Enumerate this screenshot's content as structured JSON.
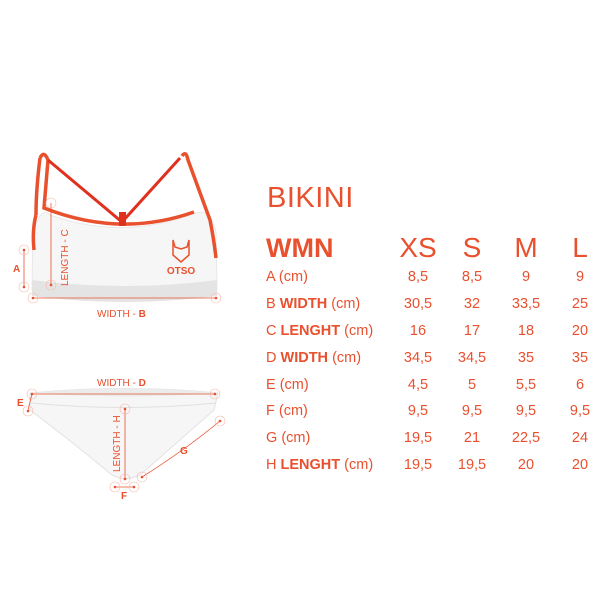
{
  "title": "BIKINI",
  "table": {
    "header": "WMN",
    "sizes": [
      "XS",
      "S",
      "M",
      "L"
    ],
    "rows": [
      {
        "letter": "A",
        "bold": "",
        "unit": "(cm)",
        "values": [
          "8,5",
          "8,5",
          "9",
          "9"
        ]
      },
      {
        "letter": "B",
        "bold": "WIDTH",
        "unit": "(cm)",
        "values": [
          "30,5",
          "32",
          "33,5",
          "25"
        ]
      },
      {
        "letter": "C",
        "bold": "LENGHT",
        "unit": "(cm)",
        "values": [
          "16",
          "17",
          "18",
          "20"
        ]
      },
      {
        "letter": "D",
        "bold": "WIDTH",
        "unit": "(cm)",
        "values": [
          "34,5",
          "34,5",
          "35",
          "35"
        ]
      },
      {
        "letter": "E",
        "bold": "",
        "unit": "(cm)",
        "values": [
          "4,5",
          "5",
          "5,5",
          "6"
        ]
      },
      {
        "letter": "F",
        "bold": "",
        "unit": "(cm)",
        "values": [
          "9,5",
          "9,5",
          "9,5",
          "9,5"
        ]
      },
      {
        "letter": "G",
        "bold": "",
        "unit": "(cm)",
        "values": [
          "19,5",
          "21",
          "22,5",
          "24"
        ]
      },
      {
        "letter": "H",
        "bold": "LENGHT",
        "unit": "(cm)",
        "values": [
          "19,5",
          "19,5",
          "20",
          "20"
        ]
      }
    ]
  },
  "diagram": {
    "top": {
      "length_c": "LENGTH - C",
      "a": "A",
      "width_b_text": "WIDTH - ",
      "width_b_letter": "B",
      "logo": "OTSO"
    },
    "bottom": {
      "width_d_text": "WIDTH - ",
      "width_d_letter": "D",
      "e": "E",
      "length_h": "LENGTH - H",
      "g": "G",
      "f": "F"
    }
  },
  "colors": {
    "accent": "#e8502e",
    "strap": "#e0301e"
  }
}
